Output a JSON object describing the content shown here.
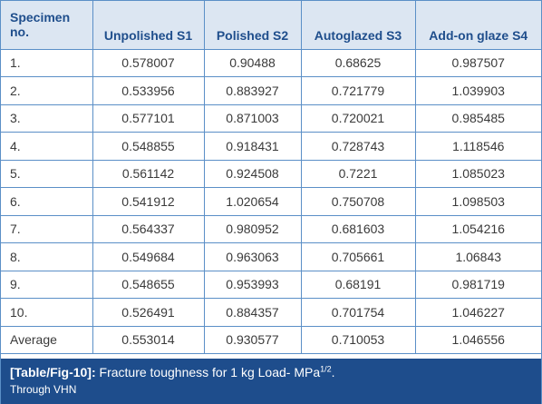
{
  "table": {
    "headers": [
      {
        "line1": "Specimen",
        "line2": "no."
      },
      {
        "line1": "Unpolished S1",
        "line2": ""
      },
      {
        "line1": "Polished S2",
        "line2": ""
      },
      {
        "line1": "Autoglazed S3",
        "line2": ""
      },
      {
        "line1": "Add-on glaze S4",
        "line2": ""
      }
    ],
    "rows": [
      [
        "1.",
        "0.578007",
        "0.90488",
        "0.68625",
        "0.987507"
      ],
      [
        "2.",
        "0.533956",
        "0.883927",
        "0.721779",
        "1.039903"
      ],
      [
        "3.",
        "0.577101",
        "0.871003",
        "0.720021",
        "0.985485"
      ],
      [
        "4.",
        "0.548855",
        "0.918431",
        "0.728743",
        "1.118546"
      ],
      [
        "5.",
        "0.561142",
        "0.924508",
        "0.7221",
        "1.085023"
      ],
      [
        "6.",
        "0.541912",
        "1.020654",
        "0.750708",
        "1.098503"
      ],
      [
        "7.",
        "0.564337",
        "0.980952",
        "0.681603",
        "1.054216"
      ],
      [
        "8.",
        "0.549684",
        "0.963063",
        "0.705661",
        "1.06843"
      ],
      [
        "9.",
        "0.548655",
        "0.953993",
        "0.68191",
        "0.981719"
      ],
      [
        "10.",
        "0.526491",
        "0.884357",
        "0.701754",
        "1.046227"
      ],
      [
        "Average",
        "0.553014",
        "0.930577",
        "0.710053",
        "1.046556"
      ]
    ]
  },
  "caption": {
    "label": "[Table/Fig-10]:",
    "text": "Fracture toughness for 1 kg Load- MPa",
    "superscript": "1/2",
    "suffix": ".",
    "line2": "Through VHN"
  },
  "colors": {
    "border": "#5b8fc7",
    "header_bg": "#dce6f2",
    "header_text": "#1f4e8c",
    "caption_bg": "#1e4d8c"
  }
}
